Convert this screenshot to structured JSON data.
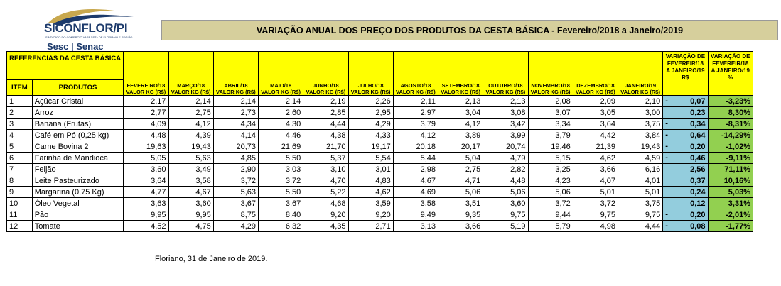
{
  "logo": {
    "name": "SICONFLOR/PI",
    "subtitle": "SINDICATO DO COMERCIO VAREJISTA DE FLORIANO E REGIÃO",
    "partners": "Sesc | Senac"
  },
  "title": "VARIAÇÃO ANUAL DOS PREÇO DOS PRODUTOS DA CESTA BÁSICA - Fevereiro/2018 a Janeiro/2019",
  "table": {
    "ref_header": "REFERENCIAS DA CESTA BÁSICA",
    "item_header": "ITEM",
    "products_header": "PRODUTOS",
    "month_headers": [
      "FEVEREIRO/18 VALOR KG (R$)",
      "MARÇO/18 VALOR KG (R$)",
      "ABRIL/18 VALOR KG (R$)",
      "MAIO/18 VALOR KG (R$)",
      "JUNHO/18 VALOR KG (R$)",
      "JULHO/18 VALOR KG (R$)",
      "AGOSTO/18 VALOR KG (R$)",
      "SETEMBRO/18 VALOR KG (R$)",
      "OUTUBRO/18 VALOR KG (R$)",
      "NOVEMBRO/18 VALOR KG (R$)",
      "DEZEMBRO/18 VALOR KG (R$)",
      "JANEIRO/19 VALOR KG (R$)"
    ],
    "var_rs_header": "VARIAÇÃO DE FEVEREIR/18 A JANEIRO/19 R$",
    "var_pct_header": "VARIAÇÃO DE FEVEREIR/18 A JANEIRO/19 %",
    "rows": [
      {
        "item": "1",
        "product": "Açúcar Cristal",
        "values": [
          "2,17",
          "2,14",
          "2,14",
          "2,14",
          "2,19",
          "2,26",
          "2,11",
          "2,13",
          "2,13",
          "2,08",
          "2,09",
          "2,10"
        ],
        "neg": "-",
        "var_rs": "0,07",
        "var_pct": "-3,23%"
      },
      {
        "item": "2",
        "product": "Arroz",
        "values": [
          "2,77",
          "2,75",
          "2,73",
          "2,60",
          "2,85",
          "2,95",
          "2,97",
          "3,04",
          "3,08",
          "3,07",
          "3,05",
          "3,00"
        ],
        "neg": "",
        "var_rs": "0,23",
        "var_pct": "8,30%"
      },
      {
        "item": "3",
        "product": "Banana (Frutas)",
        "values": [
          "4,09",
          "4,12",
          "4,34",
          "4,30",
          "4,44",
          "4,29",
          "3,79",
          "4,12",
          "3,42",
          "3,34",
          "3,64",
          "3,75"
        ],
        "neg": "-",
        "var_rs": "0,34",
        "var_pct": "-8,31%"
      },
      {
        "item": "4",
        "product": "Café em Pó (0,25 kg)",
        "values": [
          "4,48",
          "4,39",
          "4,14",
          "4,46",
          "4,38",
          "4,33",
          "4,12",
          "3,89",
          "3,99",
          "3,79",
          "4,42",
          "3,84"
        ],
        "neg": "-",
        "var_rs": "0,64",
        "var_pct": "-14,29%"
      },
      {
        "item": "5",
        "product": "Carne Bovina 2",
        "values": [
          "19,63",
          "19,43",
          "20,73",
          "21,69",
          "21,70",
          "19,17",
          "20,18",
          "20,17",
          "20,74",
          "19,46",
          "21,39",
          "19,43"
        ],
        "neg": "-",
        "var_rs": "0,20",
        "var_pct": "-1,02%"
      },
      {
        "item": "6",
        "product": "Farinha de Mandioca",
        "values": [
          "5,05",
          "5,63",
          "4,85",
          "5,50",
          "5,37",
          "5,54",
          "5,44",
          "5,04",
          "4,79",
          "5,15",
          "4,62",
          "4,59"
        ],
        "neg": "-",
        "var_rs": "0,46",
        "var_pct": "-9,11%"
      },
      {
        "item": "7",
        "product": "Feijão",
        "values": [
          "3,60",
          "3,49",
          "2,90",
          "3,03",
          "3,10",
          "3,01",
          "2,98",
          "2,75",
          "2,82",
          "3,25",
          "3,66",
          "6,16"
        ],
        "neg": "",
        "var_rs": "2,56",
        "var_pct": "71,11%"
      },
      {
        "item": "8",
        "product": "Leite Pasteurizado",
        "values": [
          "3,64",
          "3,58",
          "3,72",
          "3,72",
          "4,70",
          "4,83",
          "4,67",
          "4,71",
          "4,48",
          "4,23",
          "4,07",
          "4,01"
        ],
        "neg": "",
        "var_rs": "0,37",
        "var_pct": "10,16%"
      },
      {
        "item": "9",
        "product": "Margarina (0,75 Kg)",
        "values": [
          "4,77",
          "4,67",
          "5,63",
          "5,50",
          "5,22",
          "4,62",
          "4,69",
          "5,06",
          "5,06",
          "5,06",
          "5,01",
          "5,01"
        ],
        "neg": "",
        "var_rs": "0,24",
        "var_pct": "5,03%"
      },
      {
        "item": "10",
        "product": "Óleo Vegetal",
        "values": [
          "3,63",
          "3,60",
          "3,67",
          "3,67",
          "4,68",
          "3,59",
          "3,58",
          "3,51",
          "3,60",
          "3,72",
          "3,72",
          "3,75"
        ],
        "neg": "",
        "var_rs": "0,12",
        "var_pct": "3,31%"
      },
      {
        "item": "11",
        "product": "Pão",
        "values": [
          "9,95",
          "9,95",
          "8,75",
          "8,40",
          "9,20",
          "9,20",
          "9,49",
          "9,35",
          "9,75",
          "9,44",
          "9,75",
          "9,75"
        ],
        "neg": "-",
        "var_rs": "0,20",
        "var_pct": "-2,01%"
      },
      {
        "item": "12",
        "product": "Tomate",
        "values": [
          "4,52",
          "4,75",
          "4,29",
          "6,32",
          "4,35",
          "2,71",
          "3,13",
          "3,66",
          "5,19",
          "5,79",
          "4,98",
          "4,44"
        ],
        "neg": "-",
        "var_rs": "0,08",
        "var_pct": "-1,77%"
      }
    ]
  },
  "footer": "Floriano, 31 de Janeiro de 2019.",
  "colors": {
    "header_yellow": "#ffff00",
    "title_bar": "#d6cf9c",
    "var_rs_blue": "#93cddd",
    "var_pct_green": "#92d050",
    "brand_navy": "#1c3a6b",
    "brand_gold": "#c8a84e"
  }
}
